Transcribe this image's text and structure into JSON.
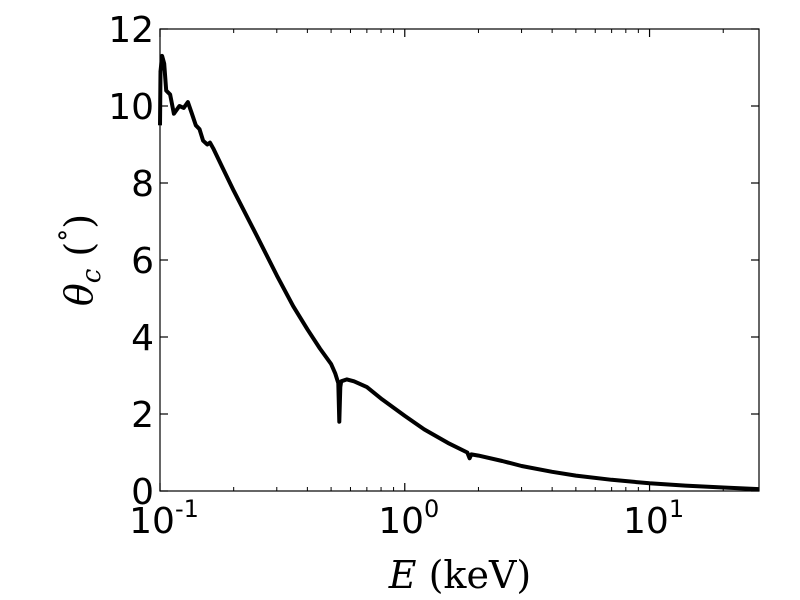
{
  "chart_data": {
    "type": "line",
    "xlabel_var": "E",
    "xlabel_unit": "(keV)",
    "ylabel_var": "θ",
    "ylabel_sub": "c",
    "ylabel_unit_open": "(",
    "ylabel_unit_symbol": "°",
    "ylabel_unit_close": ")",
    "xscale": "log",
    "xlim": [
      0.1,
      28
    ],
    "ylim": [
      0,
      12
    ],
    "x_ticks": [
      {
        "base": "10",
        "exp": "-1",
        "value": 0.1
      },
      {
        "base": "10",
        "exp": "0",
        "value": 1
      },
      {
        "base": "10",
        "exp": "1",
        "value": 10
      }
    ],
    "y_ticks": [
      "0",
      "2",
      "4",
      "6",
      "8",
      "10",
      "12"
    ],
    "grid": false,
    "legend": "none",
    "series": [
      {
        "color": "#000000",
        "points": [
          [
            0.1,
            9.5
          ],
          [
            0.1005,
            10.9
          ],
          [
            0.102,
            11.3
          ],
          [
            0.104,
            11.1
          ],
          [
            0.106,
            10.4
          ],
          [
            0.11,
            10.3
          ],
          [
            0.114,
            9.8
          ],
          [
            0.12,
            10.0
          ],
          [
            0.125,
            9.95
          ],
          [
            0.13,
            10.1
          ],
          [
            0.135,
            9.8
          ],
          [
            0.14,
            9.5
          ],
          [
            0.145,
            9.4
          ],
          [
            0.15,
            9.1
          ],
          [
            0.156,
            9.0
          ],
          [
            0.16,
            9.05
          ],
          [
            0.165,
            8.9
          ],
          [
            0.18,
            8.4
          ],
          [
            0.2,
            7.8
          ],
          [
            0.25,
            6.6
          ],
          [
            0.3,
            5.6
          ],
          [
            0.35,
            4.8
          ],
          [
            0.4,
            4.2
          ],
          [
            0.45,
            3.7
          ],
          [
            0.5,
            3.3
          ],
          [
            0.52,
            3.05
          ],
          [
            0.535,
            2.8
          ],
          [
            0.54,
            1.8
          ],
          [
            0.545,
            2.7
          ],
          [
            0.55,
            2.85
          ],
          [
            0.58,
            2.9
          ],
          [
            0.62,
            2.85
          ],
          [
            0.7,
            2.7
          ],
          [
            0.8,
            2.4
          ],
          [
            1.0,
            1.95
          ],
          [
            1.2,
            1.6
          ],
          [
            1.5,
            1.25
          ],
          [
            1.8,
            1.0
          ],
          [
            1.84,
            0.85
          ],
          [
            1.87,
            0.95
          ],
          [
            2.0,
            0.92
          ],
          [
            2.5,
            0.78
          ],
          [
            3.0,
            0.65
          ],
          [
            4.0,
            0.5
          ],
          [
            5.0,
            0.4
          ],
          [
            7.0,
            0.29
          ],
          [
            10.0,
            0.2
          ],
          [
            14.0,
            0.14
          ],
          [
            20.0,
            0.09
          ],
          [
            28.0,
            0.05
          ]
        ]
      }
    ]
  }
}
